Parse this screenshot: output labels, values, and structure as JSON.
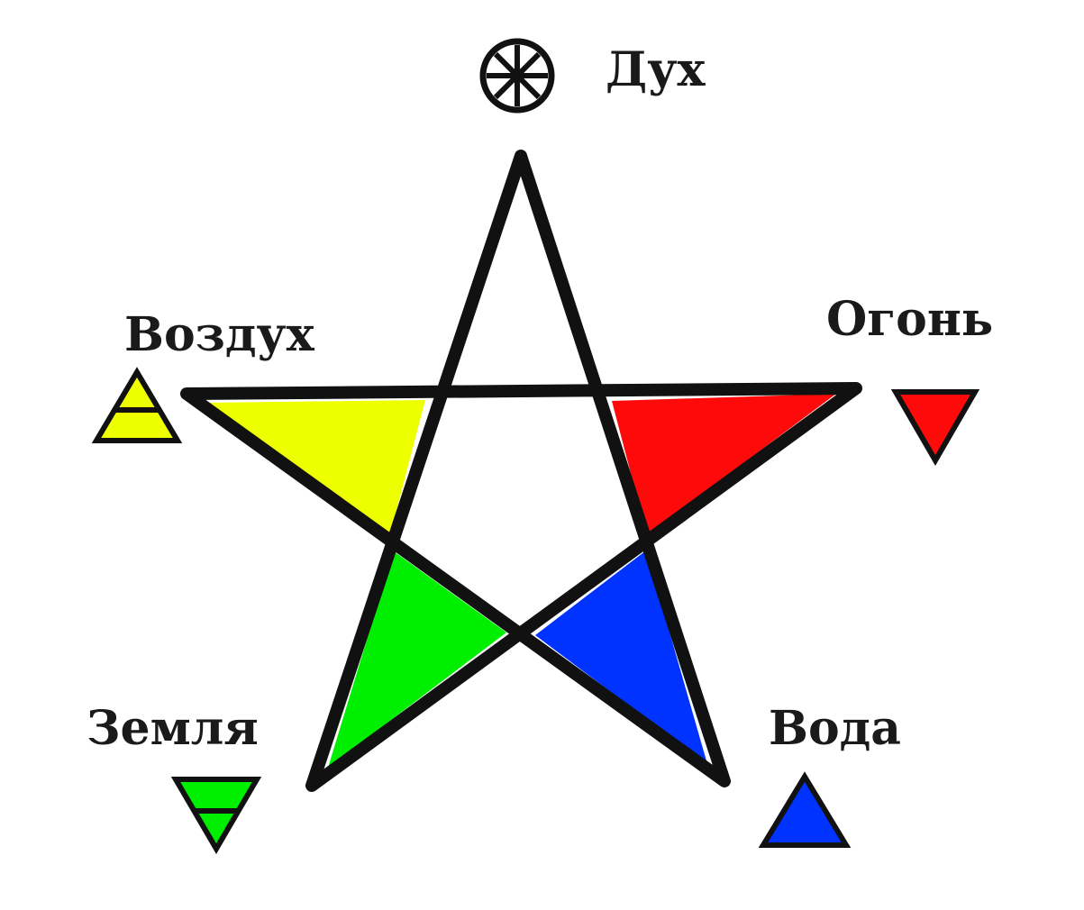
{
  "elements": {
    "spirit": {
      "label": "Дух"
    },
    "air": {
      "label": "Воздух",
      "color": "#eeff00"
    },
    "fire": {
      "label": "Огонь",
      "color": "#ff0a0a"
    },
    "earth": {
      "label": "Земля",
      "color": "#00ee00"
    },
    "water": {
      "label": "Вода",
      "color": "#0033ff"
    }
  },
  "outline_color": "#111111"
}
